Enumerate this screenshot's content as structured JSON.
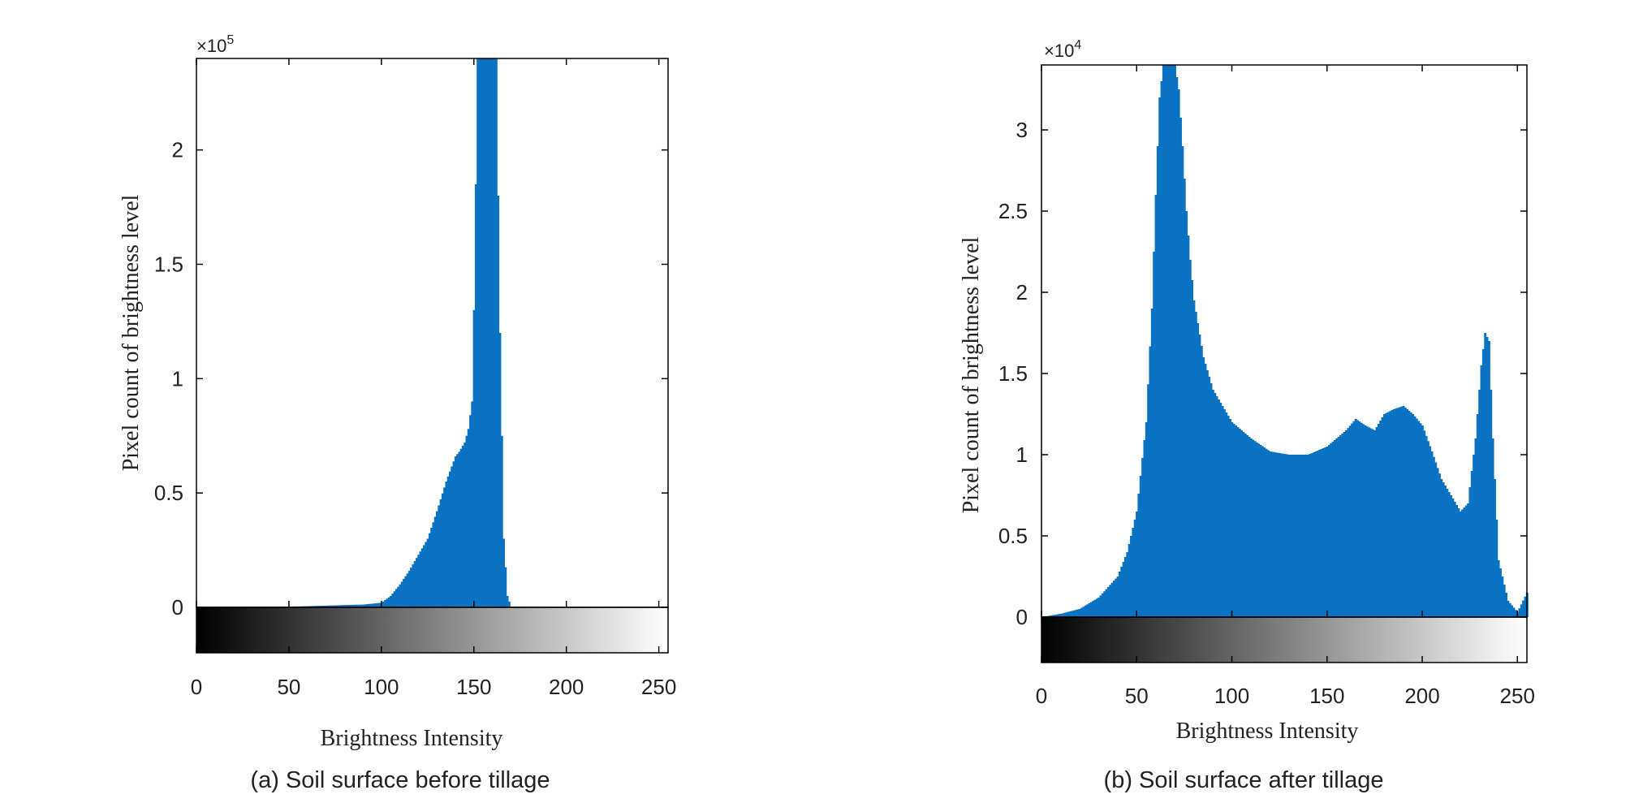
{
  "colors": {
    "bar": "#0a72c2",
    "axis": "#000000",
    "text": "#222222"
  },
  "panels": [
    {
      "caption": "(a)  Soil surface before tillage",
      "exponent_base": "×10",
      "exponent_power": "5",
      "chart_data": {
        "type": "bar",
        "xlabel": "Brightness Intensity",
        "ylabel": "Pixel count of brightness level",
        "xlim": [
          0,
          255
        ],
        "ylim": [
          0,
          2.4
        ],
        "y_multiplier": 100000,
        "x_ticks": [
          0,
          50,
          100,
          150,
          200,
          250
        ],
        "x_tick_labels": [
          "0",
          "50",
          "100",
          "150",
          "200",
          "250"
        ],
        "y_ticks": [
          0,
          0.5,
          1,
          1.5,
          2
        ],
        "y_tick_labels": [
          "0",
          "0.5",
          "1",
          "1.5",
          "2"
        ],
        "colorbar": "grayscale 0-255 below x-axis",
        "x": [
          0,
          40,
          60,
          80,
          90,
          100,
          105,
          110,
          115,
          120,
          125,
          130,
          135,
          140,
          142,
          145,
          147,
          149,
          150,
          152,
          154,
          156,
          158,
          160,
          162,
          164,
          166,
          168,
          170,
          255
        ],
        "values": [
          0,
          0,
          0.005,
          0.01,
          0.012,
          0.02,
          0.05,
          0.1,
          0.16,
          0.23,
          0.3,
          0.42,
          0.55,
          0.66,
          0.68,
          0.72,
          0.78,
          0.9,
          1.3,
          2.4,
          2.4,
          2.4,
          2.4,
          2.4,
          2.4,
          1.2,
          0.3,
          0.05,
          0,
          0
        ]
      }
    },
    {
      "caption": "(b)  Soil surface after tillage",
      "exponent_base": "×10",
      "exponent_power": "4",
      "chart_data": {
        "type": "bar",
        "xlabel": "Brightness Intensity",
        "ylabel": "Pixel count of brightness level",
        "xlim": [
          0,
          255
        ],
        "ylim": [
          0,
          3.4
        ],
        "y_multiplier": 10000,
        "x_ticks": [
          0,
          50,
          100,
          150,
          200,
          250
        ],
        "x_tick_labels": [
          "0",
          "50",
          "100",
          "150",
          "200",
          "250"
        ],
        "y_ticks": [
          0,
          0.5,
          1,
          1.5,
          2,
          2.5,
          3
        ],
        "y_tick_labels": [
          "0",
          "0.5",
          "1",
          "1.5",
          "2",
          "2.5",
          "3"
        ],
        "colorbar": "grayscale 0-255 below x-axis",
        "x": [
          0,
          10,
          20,
          30,
          40,
          45,
          50,
          55,
          58,
          60,
          62,
          64,
          66,
          68,
          70,
          72,
          74,
          76,
          78,
          80,
          85,
          90,
          95,
          100,
          110,
          120,
          130,
          140,
          150,
          160,
          165,
          170,
          175,
          180,
          185,
          190,
          195,
          200,
          205,
          210,
          215,
          220,
          224,
          228,
          231,
          233,
          235,
          237,
          240,
          245,
          250,
          255
        ],
        "values": [
          0,
          0.02,
          0.05,
          0.12,
          0.25,
          0.4,
          0.65,
          1.2,
          1.9,
          2.6,
          3.2,
          3.4,
          3.4,
          3.4,
          3.4,
          3.25,
          2.9,
          2.5,
          2.2,
          1.95,
          1.6,
          1.4,
          1.3,
          1.2,
          1.1,
          1.02,
          1.0,
          1.0,
          1.05,
          1.15,
          1.22,
          1.18,
          1.15,
          1.25,
          1.28,
          1.3,
          1.25,
          1.18,
          1.02,
          0.85,
          0.75,
          0.65,
          0.7,
          1.1,
          1.55,
          1.75,
          1.7,
          1.1,
          0.35,
          0.1,
          0.03,
          0.15
        ]
      }
    }
  ]
}
